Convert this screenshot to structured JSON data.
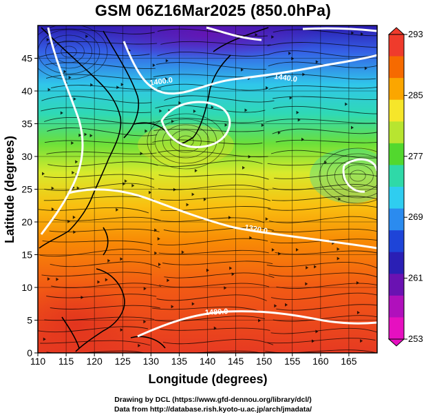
{
  "title": "GSM 06Z16Mar2025 (850.0hPa)",
  "xlabel": "Longitude (degrees)",
  "ylabel": "Latitude  (degrees)",
  "credit_drawing": "Drawing by DCL (https://www.gfd-dennou.org/library/dcl/)",
  "credit_data": "Data from http://database.rish.kyoto-u.ac.jp/arch/jmadata/",
  "chart_data": {
    "type": "heatmap",
    "variable": "temperature with streamlines and geopotential height contours",
    "xlim": [
      110,
      170
    ],
    "ylim": [
      0,
      50
    ],
    "x_ticks": [
      "110",
      "115",
      "120",
      "125",
      "130",
      "135",
      "140",
      "145",
      "150",
      "155",
      "160",
      "165"
    ],
    "y_ticks": [
      "0",
      "5",
      "10",
      "15",
      "20",
      "25",
      "30",
      "35",
      "40",
      "45"
    ],
    "colorbar": {
      "min": 253,
      "max": 293,
      "tick_labels": [
        "293",
        "285",
        "277",
        "269",
        "261",
        "253"
      ],
      "colors": [
        "#ef3b2c",
        "#f66a00",
        "#fba600",
        "#f6e62a",
        "#b8e530",
        "#52d82e",
        "#2fd9a8",
        "#2fcdf0",
        "#2b8bef",
        "#1e44d8",
        "#2a1fb5",
        "#6a12b2",
        "#b010bc",
        "#e610c0"
      ]
    },
    "contour_labels": [
      "1400.0",
      "1440.0",
      "1320.0",
      "1480.0"
    ],
    "contour_color": "#ffffff"
  }
}
